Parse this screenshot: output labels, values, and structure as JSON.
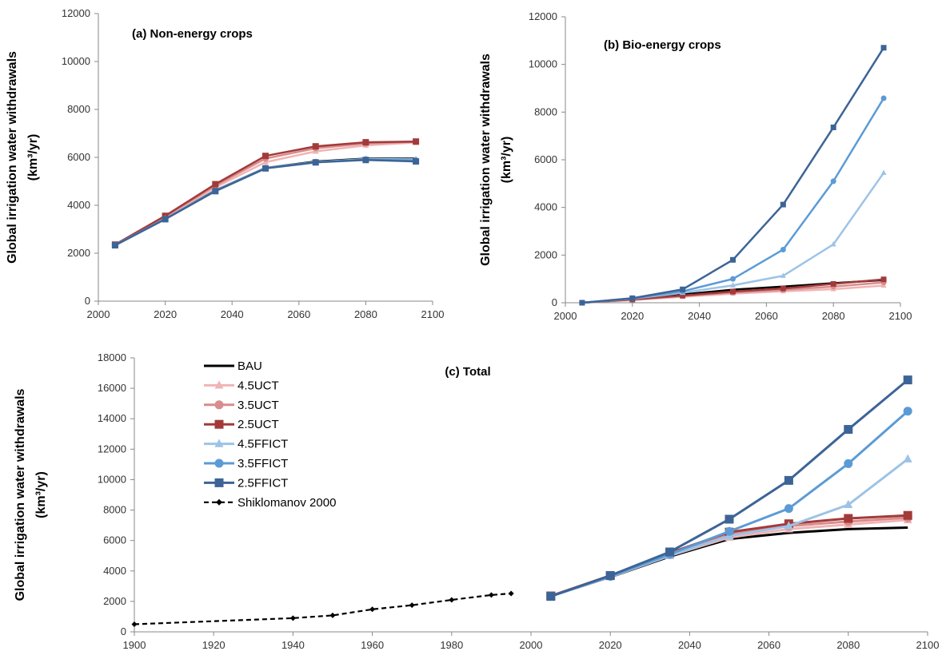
{
  "series_styles": {
    "BAU": {
      "color": "#000000",
      "marker": "none",
      "dash": ""
    },
    "4.5UCT": {
      "color": "#f0b4b4",
      "marker": "triangle",
      "dash": ""
    },
    "3.5UCT": {
      "color": "#d98c8c",
      "marker": "circle",
      "dash": ""
    },
    "2.5UCT": {
      "color": "#a33a3a",
      "marker": "square",
      "dash": ""
    },
    "4.5FFICT": {
      "color": "#9dc3e6",
      "marker": "triangle",
      "dash": ""
    },
    "3.5FFICT": {
      "color": "#5b9bd5",
      "marker": "circle",
      "dash": ""
    },
    "2.5FFICT": {
      "color": "#3c6496",
      "marker": "square",
      "dash": ""
    },
    "Shiklomanov 2000": {
      "color": "#000000",
      "marker": "diamond",
      "dash": "6,4"
    }
  },
  "chart_data": [
    {
      "id": "a",
      "type": "line",
      "title": "(a) Non-energy crops",
      "ylabel_line1": "Global irrigation water withdrawals",
      "ylabel_line2": "(km³/yr)",
      "xlim": [
        2000,
        2100
      ],
      "ylim": [
        0,
        12000
      ],
      "xticks": [
        2000,
        2020,
        2040,
        2060,
        2080,
        2100
      ],
      "yticks": [
        0,
        2000,
        4000,
        6000,
        8000,
        10000,
        12000
      ],
      "x": [
        2005,
        2020,
        2035,
        2050,
        2065,
        2080,
        2095
      ],
      "series": [
        {
          "name": "BAU",
          "values": [
            2350,
            3450,
            4620,
            5560,
            5830,
            5950,
            5950
          ]
        },
        {
          "name": "4.5UCT",
          "values": [
            2350,
            3500,
            4750,
            5800,
            6250,
            6500,
            6620
          ]
        },
        {
          "name": "3.5UCT",
          "values": [
            2350,
            3530,
            4820,
            5950,
            6380,
            6580,
            6650
          ]
        },
        {
          "name": "2.5UCT",
          "values": [
            2360,
            3560,
            4880,
            6060,
            6460,
            6630,
            6660
          ]
        },
        {
          "name": "4.5FFICT",
          "values": [
            2340,
            3440,
            4610,
            5560,
            5810,
            5930,
            5920
          ]
        },
        {
          "name": "3.5FFICT",
          "values": [
            2340,
            3430,
            4600,
            5550,
            5800,
            5910,
            5870
          ]
        },
        {
          "name": "2.5FFICT",
          "values": [
            2330,
            3420,
            4590,
            5540,
            5790,
            5890,
            5830
          ]
        }
      ]
    },
    {
      "id": "b",
      "type": "line",
      "title": "(b) Bio-energy crops",
      "ylabel_line1": "Global irrigation water withdrawals",
      "ylabel_line2": "(km³/yr)",
      "xlim": [
        2000,
        2100
      ],
      "ylim": [
        0,
        12000
      ],
      "xticks": [
        2000,
        2020,
        2040,
        2060,
        2080,
        2100
      ],
      "yticks": [
        0,
        2000,
        4000,
        6000,
        8000,
        10000,
        12000
      ],
      "x": [
        2005,
        2020,
        2035,
        2050,
        2065,
        2080,
        2095
      ],
      "series": [
        {
          "name": "BAU",
          "values": [
            0,
            150,
            350,
            550,
            680,
            820,
            950
          ]
        },
        {
          "name": "4.5UCT",
          "values": [
            0,
            110,
            250,
            380,
            480,
            570,
            720
          ]
        },
        {
          "name": "3.5UCT",
          "values": [
            0,
            130,
            280,
            430,
            540,
            680,
            850
          ]
        },
        {
          "name": "2.5UCT",
          "values": [
            0,
            140,
            300,
            470,
            600,
            790,
            980
          ]
        },
        {
          "name": "4.5FFICT",
          "values": [
            0,
            170,
            420,
            730,
            1130,
            2450,
            5450
          ]
        },
        {
          "name": "3.5FFICT",
          "values": [
            0,
            180,
            480,
            1000,
            2230,
            5100,
            8580
          ]
        },
        {
          "name": "2.5FFICT",
          "values": [
            0,
            190,
            560,
            1800,
            4120,
            7360,
            10700
          ]
        }
      ]
    },
    {
      "id": "c",
      "type": "line",
      "title": "(c) Total",
      "ylabel_line1": "Global irrigation water withdrawals",
      "ylabel_line2": "(km³/yr)",
      "xlim": [
        1900,
        2100
      ],
      "ylim": [
        0,
        18000
      ],
      "xticks": [
        1900,
        1920,
        1940,
        1960,
        1980,
        2000,
        2020,
        2040,
        2060,
        2080,
        2100
      ],
      "yticks": [
        0,
        2000,
        4000,
        6000,
        8000,
        10000,
        12000,
        14000,
        16000,
        18000
      ],
      "x": [
        2005,
        2020,
        2035,
        2050,
        2065,
        2080,
        2095
      ],
      "legend": [
        "BAU",
        "4.5UCT",
        "3.5UCT",
        "2.5UCT",
        "4.5FFICT",
        "3.5FFICT",
        "2.5FFICT",
        "Shiklomanov 2000"
      ],
      "legend_position": "top-left",
      "series": [
        {
          "name": "BAU",
          "values": [
            2350,
            3600,
            4950,
            6100,
            6500,
            6750,
            6850
          ]
        },
        {
          "name": "4.5UCT",
          "values": [
            2350,
            3610,
            5000,
            6200,
            6750,
            7050,
            7350
          ]
        },
        {
          "name": "3.5UCT",
          "values": [
            2350,
            3640,
            5080,
            6400,
            6950,
            7250,
            7500
          ]
        },
        {
          "name": "2.5UCT",
          "values": [
            2360,
            3700,
            5180,
            6550,
            7100,
            7450,
            7650
          ]
        },
        {
          "name": "4.5FFICT",
          "values": [
            2340,
            3620,
            5010,
            6300,
            6950,
            8350,
            11350
          ]
        },
        {
          "name": "3.5FFICT",
          "values": [
            2340,
            3650,
            5100,
            6600,
            8100,
            11050,
            14500
          ]
        },
        {
          "name": "2.5FFICT",
          "values": [
            2330,
            3700,
            5250,
            7400,
            9950,
            13300,
            16550
          ]
        },
        {
          "name": "Shiklomanov 2000",
          "x": [
            1900,
            1940,
            1950,
            1960,
            1970,
            1980,
            1990,
            1995
          ],
          "values": [
            500,
            900,
            1080,
            1480,
            1750,
            2100,
            2420,
            2520
          ]
        }
      ]
    }
  ]
}
